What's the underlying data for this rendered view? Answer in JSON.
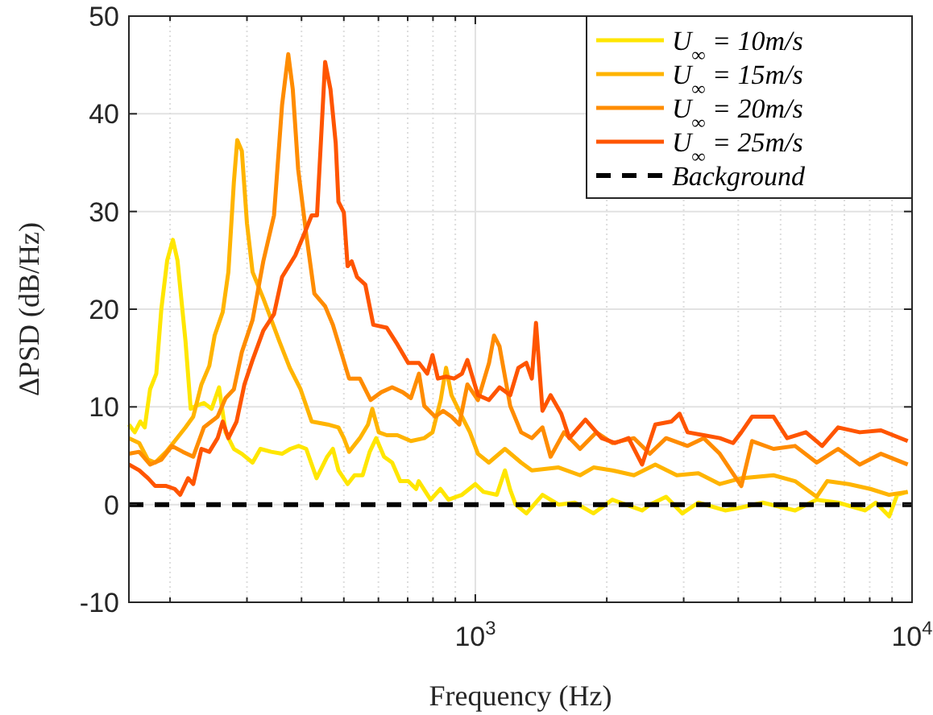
{
  "chart_data": {
    "type": "line",
    "xlabel": "Frequency (Hz)",
    "ylabel": "ΔPSD (dB/Hz)",
    "log": "x",
    "grid": true,
    "legend": "top right",
    "xlim": [
      161,
      10000
    ],
    "xticks": [
      {
        "value": 200,
        "label": null
      },
      {
        "value": 300,
        "label": null
      },
      {
        "value": 400,
        "label": null
      },
      {
        "value": 500,
        "label": null
      },
      {
        "value": 600,
        "label": null
      },
      {
        "value": 700,
        "label": null
      },
      {
        "value": 800,
        "label": null
      },
      {
        "value": 900,
        "label": null
      },
      {
        "value": 1000,
        "label": "10$^{3}$"
      },
      {
        "value": 2000,
        "label": null
      },
      {
        "value": 3000,
        "label": null
      },
      {
        "value": 4000,
        "label": null
      },
      {
        "value": 5000,
        "label": null
      },
      {
        "value": 6000,
        "label": null
      },
      {
        "value": 7000,
        "label": null
      },
      {
        "value": 8000,
        "label": null
      },
      {
        "value": 9000,
        "label": null
      },
      {
        "value": 10000,
        "label": "10$^{4}$"
      }
    ],
    "ylim": [
      -10,
      50
    ],
    "yticks": [
      -10,
      0,
      10,
      20,
      30,
      40,
      50
    ],
    "series": [
      {
        "name": "U$_{∞}$ = 10m/s",
        "color": "#ffe600",
        "x": [
          161,
          166,
          171,
          175,
          180,
          186,
          191,
          197,
          203,
          208,
          217,
          223,
          229,
          239,
          249,
          259,
          268,
          280,
          292,
          309,
          322,
          341,
          361,
          377,
          394,
          410,
          433,
          458,
          472,
          486,
          510,
          529,
          552,
          573,
          593,
          618,
          645,
          673,
          702,
          732,
          742,
          790,
          832,
          868,
          906,
          932,
          1000,
          1044,
          1120,
          1169,
          1202,
          1237,
          1309,
          1425,
          1551,
          1689,
          1865,
          2060,
          2409,
          2510,
          2734,
          2977,
          3241,
          3733,
          4065,
          4553,
          5397,
          6049,
          6771,
          7801,
          8259,
          8867,
          9245,
          9775
        ],
        "values": [
          8.2,
          7.4,
          8.5,
          7.9,
          11.8,
          13.4,
          20,
          25,
          27.1,
          25,
          16.7,
          9.8,
          10.1,
          10.4,
          9.8,
          12,
          7.4,
          5.7,
          5.2,
          4.3,
          5.7,
          5.4,
          5.2,
          5.7,
          6,
          5.7,
          2.7,
          4.9,
          5.7,
          3.5,
          2.1,
          3,
          3,
          5.4,
          6.8,
          4.9,
          4.3,
          2.4,
          2.4,
          1.6,
          2.4,
          0.5,
          1.6,
          0.5,
          0.8,
          1,
          2.1,
          1.3,
          1,
          3.5,
          1.5,
          0,
          -0.9,
          1,
          0,
          0.2,
          -0.9,
          0.5,
          -0.6,
          0,
          0.8,
          -0.9,
          0.2,
          -0.6,
          -0.3,
          0.2,
          -0.6,
          0.5,
          0.2,
          -0.6,
          0.2,
          -1.2,
          1,
          1.3
        ]
      },
      {
        "name": "U$_{∞}$ = 15m/s",
        "color": "#ffb400",
        "x": [
          161,
          170,
          178,
          185,
          196,
          205,
          217,
          226,
          236,
          246,
          253,
          264,
          272,
          280,
          285,
          292,
          300,
          309,
          327,
          356,
          376,
          398,
          422,
          459,
          486,
          500,
          514,
          544,
          568,
          581,
          601,
          627,
          663,
          712,
          764,
          798,
          833,
          857,
          882,
          932,
          972,
          1014,
          1074,
          1169,
          1273,
          1347,
          1551,
          1737,
          1865,
          2060,
          2308,
          2583,
          2893,
          3241,
          3629,
          4065,
          4817,
          5397,
          6049,
          6393,
          7158,
          8030,
          8867,
          9775
        ],
        "values": [
          6.8,
          6.3,
          4.6,
          4.3,
          5.4,
          6.5,
          7.9,
          9,
          12.3,
          14.2,
          17.3,
          19.7,
          23.8,
          33,
          37.3,
          36.2,
          28.8,
          23.8,
          21.1,
          16.7,
          14,
          11.8,
          8.5,
          8.2,
          7.9,
          6.8,
          5.4,
          6.8,
          8.2,
          9.8,
          7.4,
          7.1,
          7.1,
          6.5,
          6.8,
          7.4,
          10.7,
          14,
          11.2,
          9,
          7.4,
          5.2,
          4.3,
          5.7,
          4.3,
          3.5,
          3.8,
          3,
          3.8,
          3.5,
          3,
          4.1,
          3,
          3.2,
          2.1,
          2.7,
          3,
          2.4,
          0.8,
          2.4,
          2.1,
          1.6,
          1,
          1.3
        ]
      },
      {
        "name": "U$_{∞}$ = 20m/s",
        "color": "#ff8c00",
        "x": [
          161,
          170,
          180,
          191,
          202,
          214,
          226,
          239,
          257,
          268,
          280,
          292,
          309,
          327,
          346,
          361,
          373,
          382,
          393,
          410,
          428,
          453,
          472,
          493,
          514,
          544,
          576,
          609,
          645,
          682,
          712,
          743,
          764,
          809,
          844,
          882,
          919,
          959,
          1014,
          1075,
          1104,
          1136,
          1202,
          1273,
          1347,
          1425,
          1487,
          1596,
          1737,
          1892,
          2060,
          2308,
          2510,
          2734,
          3062,
          3334,
          3629,
          4065,
          4302,
          4817,
          5397,
          6049,
          6771,
          7590,
          8488,
          9775
        ],
        "values": [
          5.2,
          5.4,
          4.1,
          4.6,
          6,
          5.4,
          4.9,
          7.9,
          9,
          10.9,
          11.8,
          15.6,
          18.9,
          24.9,
          29.6,
          40.9,
          46.1,
          42.5,
          34.3,
          27.7,
          21.6,
          20.3,
          18.4,
          15.6,
          12.9,
          12.9,
          10.7,
          11.5,
          12,
          11.5,
          10.9,
          13.4,
          10.1,
          9,
          9.6,
          9,
          8.2,
          12.3,
          10.7,
          14.5,
          17.3,
          16.2,
          10.1,
          7.4,
          6.8,
          7.9,
          4.9,
          7.4,
          5.7,
          7.4,
          6.3,
          6.8,
          5.2,
          6.8,
          6,
          6.8,
          5.2,
          1.9,
          6.5,
          5.7,
          6,
          4.3,
          5.7,
          4.1,
          5.2,
          4.1
        ]
      },
      {
        "name": "U$_{∞}$ = 25m/s",
        "color": "#ff5500",
        "x": [
          161,
          170,
          178,
          185,
          196,
          205,
          211,
          220,
          226,
          236,
          246,
          257,
          264,
          272,
          284,
          296,
          309,
          327,
          346,
          361,
          387,
          410,
          422,
          434,
          453,
          466,
          479,
          486,
          500,
          510,
          521,
          536,
          560,
          584,
          627,
          663,
          702,
          743,
          776,
          798,
          821,
          857,
          894,
          932,
          959,
          1014,
          1074,
          1136,
          1202,
          1255,
          1309,
          1347,
          1377,
          1425,
          1487,
          1573,
          1642,
          1787,
          1946,
          2089,
          2243,
          2409,
          2583,
          2812,
          2935,
          3062,
          3334,
          3629,
          3892,
          4065,
          4302,
          4817,
          5177,
          5714,
          6225,
          6771,
          7590,
          8488,
          9775
        ],
        "values": [
          4.1,
          3.5,
          2.7,
          1.9,
          1.9,
          1.6,
          1,
          2.7,
          2.1,
          5.7,
          5.4,
          6.8,
          8.5,
          6.8,
          8.5,
          12.3,
          14.8,
          17.8,
          19.5,
          23.3,
          25.5,
          28.2,
          29.6,
          29.6,
          45.3,
          42.5,
          37,
          31,
          29.9,
          24.4,
          24.9,
          23.3,
          22.5,
          18.4,
          18.1,
          16.4,
          14.5,
          14.5,
          13.4,
          15.3,
          12.9,
          13.1,
          12.9,
          13.4,
          14.8,
          11.2,
          10.7,
          12,
          11.2,
          14,
          14.5,
          12.9,
          18.6,
          9.6,
          11.2,
          9.3,
          6.8,
          8.7,
          6.8,
          6.3,
          6.8,
          4.1,
          8.2,
          8.5,
          9.3,
          7.4,
          7.1,
          6.8,
          6.3,
          7.4,
          9,
          9,
          6.8,
          7.4,
          6,
          7.9,
          7.4,
          7.6,
          6.5
        ]
      },
      {
        "name": "Background",
        "color": "#000000",
        "line_style": "dashed",
        "x": [
          161,
          10000
        ],
        "values": [
          0,
          0
        ]
      }
    ]
  }
}
